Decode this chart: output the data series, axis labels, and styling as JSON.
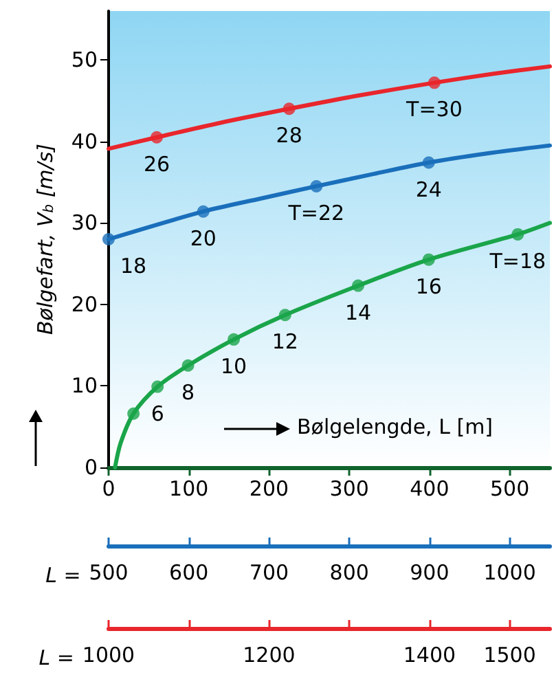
{
  "chart_data": [
    {
      "type": "line",
      "ylabel": "Bølgefart, V$_{b}$ [m/s]",
      "xlabel": "Bølgelengde, L [m]",
      "x2label": "L =",
      "xlim": [
        0,
        550
      ],
      "xticks": [
        0,
        100,
        200,
        300,
        400,
        500
      ],
      "ylim": [
        0,
        56
      ],
      "yticks": [
        0,
        10,
        20,
        30,
        40,
        50
      ],
      "x2lim": [
        1000,
        1550
      ],
      "x2ticks": [
        1000,
        {
          "value": 1100,
          "label": null
        },
        1200,
        {
          "value": 1300,
          "label": null
        },
        1400,
        1500
      ],
      "series": [
        {
          "color": "#1aa54a",
          "x": [
            8,
            15,
            31,
            61,
            99,
            156,
            220,
            311,
            399,
            510,
            550
          ],
          "values": [
            0,
            3.0,
            6.6,
            9.9,
            12.5,
            15.7,
            18.7,
            22.3,
            25.5,
            28.6,
            30.0
          ]
        },
        {
          "type": "scatter",
          "color": "#1aa54a",
          "marker": "circle",
          "x": [
            31,
            61,
            99,
            156,
            220,
            311,
            399,
            510
          ],
          "values": [
            6.6,
            9.9,
            12.5,
            15.7,
            18.7,
            22.3,
            25.5,
            28.6
          ]
        },
        {
          "color": "#e8262c",
          "axis": "x2",
          "x": [
            1000,
            1060,
            1140,
            1225,
            1310,
            1406,
            1480,
            1550
          ],
          "values": [
            39.1,
            40.5,
            42.3,
            44.0,
            45.6,
            47.2,
            48.3,
            49.2
          ]
        },
        {
          "type": "scatter",
          "color": "#e8262c",
          "axis": "x2",
          "marker": "circle",
          "x": [
            1060,
            1225,
            1406
          ],
          "values": [
            40.5,
            44.0,
            47.2
          ]
        }
      ],
      "annotations": [
        {
          "text": "6",
          "x": 61,
          "y": 9.9
        },
        {
          "text": "8",
          "x": 99,
          "y": 12.5
        },
        {
          "text": "10",
          "x": 156,
          "y": 15.7
        },
        {
          "text": "12",
          "x": 220,
          "y": 18.7
        },
        {
          "text": "14",
          "x": 311,
          "y": 22.3
        },
        {
          "text": "16",
          "x": 399,
          "y": 25.5
        },
        {
          "text": "T=18",
          "x": 510,
          "y": 28.6
        },
        {
          "text": "26",
          "x": 60,
          "y": 40.5
        },
        {
          "text": "28",
          "x": 225,
          "y": 44.0
        },
        {
          "text": "T=30",
          "x": 406,
          "y": 47.2
        }
      ]
    },
    {
      "type": "line",
      "xlabel": "L =",
      "xlim": [
        500,
        1050
      ],
      "xticks": [
        500,
        600,
        700,
        800,
        900,
        1000
      ],
      "ylim": [
        0,
        56
      ],
      "tick_labels": "x",
      "series": [
        {
          "color": "#1a6fbb",
          "x": [
            500,
            618,
            690,
            759,
            830,
            899,
            970,
            1050
          ],
          "values": [
            28.0,
            31.4,
            33.0,
            34.5,
            36.0,
            37.4,
            38.5,
            39.5
          ]
        },
        {
          "type": "scatter",
          "color": "#1a6fbb",
          "marker": "circle",
          "x": [
            500,
            618,
            759,
            899
          ],
          "values": [
            28.0,
            31.4,
            34.5,
            37.4
          ]
        }
      ],
      "annotations": [
        {
          "text": "18",
          "x": 500,
          "y": 28.0
        },
        {
          "text": "20",
          "x": 618,
          "y": 31.4
        },
        {
          "text": "T=22",
          "x": 759,
          "y": 34.5
        },
        {
          "text": "24",
          "x": 899,
          "y": 37.4
        }
      ]
    }
  ]
}
